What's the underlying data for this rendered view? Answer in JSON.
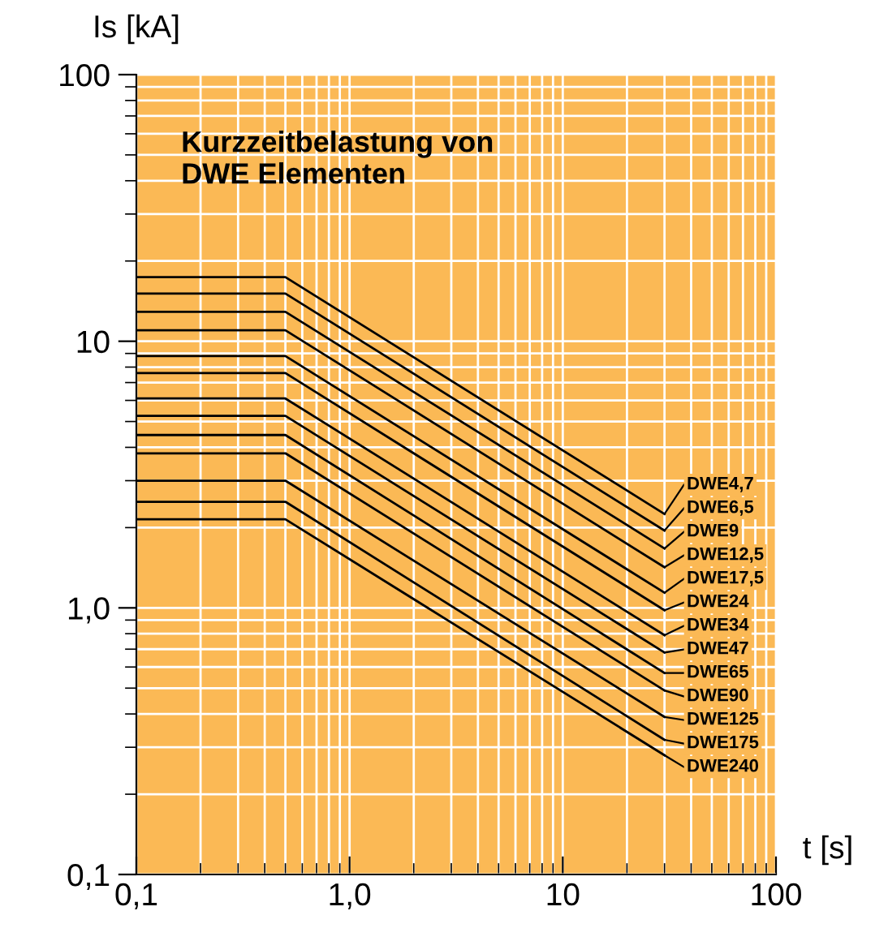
{
  "chart_data": {
    "type": "line",
    "title": "Kurzzeitbelastung von\nDWE Elementen",
    "xlabel": "t [s]",
    "ylabel": "Is [kA]",
    "log": "xy",
    "grid": true,
    "legend": "right",
    "marker": "none",
    "line_style": "solid",
    "xlim": [
      0.1,
      100
    ],
    "ylim": [
      0.1,
      100
    ],
    "xticks": [
      {
        "value": 0.1,
        "label": "0,1"
      },
      {
        "value": 1,
        "label": "1,0"
      },
      10,
      100
    ],
    "yticks": [
      {
        "value": 0.1,
        "label": "0,1"
      },
      {
        "value": 1,
        "label": "1,0"
      },
      10,
      100
    ],
    "x": [
      0.1,
      0.5,
      30
    ],
    "series": [
      {
        "name": "DWE4,7",
        "color": "#000000",
        "values": [
          17.4,
          17.4,
          2.25
        ]
      },
      {
        "name": "DWE6,5",
        "color": "#000000",
        "values": [
          15.1,
          15.1,
          1.95
        ]
      },
      {
        "name": "DWE9",
        "color": "#000000",
        "values": [
          12.9,
          12.9,
          1.67
        ]
      },
      {
        "name": "DWE12,5",
        "color": "#000000",
        "values": [
          11.0,
          11.0,
          1.42
        ]
      },
      {
        "name": "DWE17,5",
        "color": "#000000",
        "values": [
          8.8,
          8.8,
          1.14
        ]
      },
      {
        "name": "DWE24",
        "color": "#000000",
        "values": [
          7.6,
          7.6,
          0.98
        ]
      },
      {
        "name": "DWE34",
        "color": "#000000",
        "values": [
          6.1,
          6.1,
          0.79
        ]
      },
      {
        "name": "DWE47",
        "color": "#000000",
        "values": [
          5.25,
          5.25,
          0.68
        ]
      },
      {
        "name": "DWE65",
        "color": "#000000",
        "values": [
          4.45,
          4.45,
          0.57
        ]
      },
      {
        "name": "DWE90",
        "color": "#000000",
        "values": [
          3.8,
          3.8,
          0.49
        ]
      },
      {
        "name": "DWE125",
        "color": "#000000",
        "values": [
          3.0,
          3.0,
          0.39
        ]
      },
      {
        "name": "DWE175",
        "color": "#000000",
        "values": [
          2.5,
          2.5,
          0.32
        ]
      },
      {
        "name": "DWE240",
        "color": "#000000",
        "values": [
          2.15,
          2.15,
          0.28
        ]
      }
    ]
  }
}
